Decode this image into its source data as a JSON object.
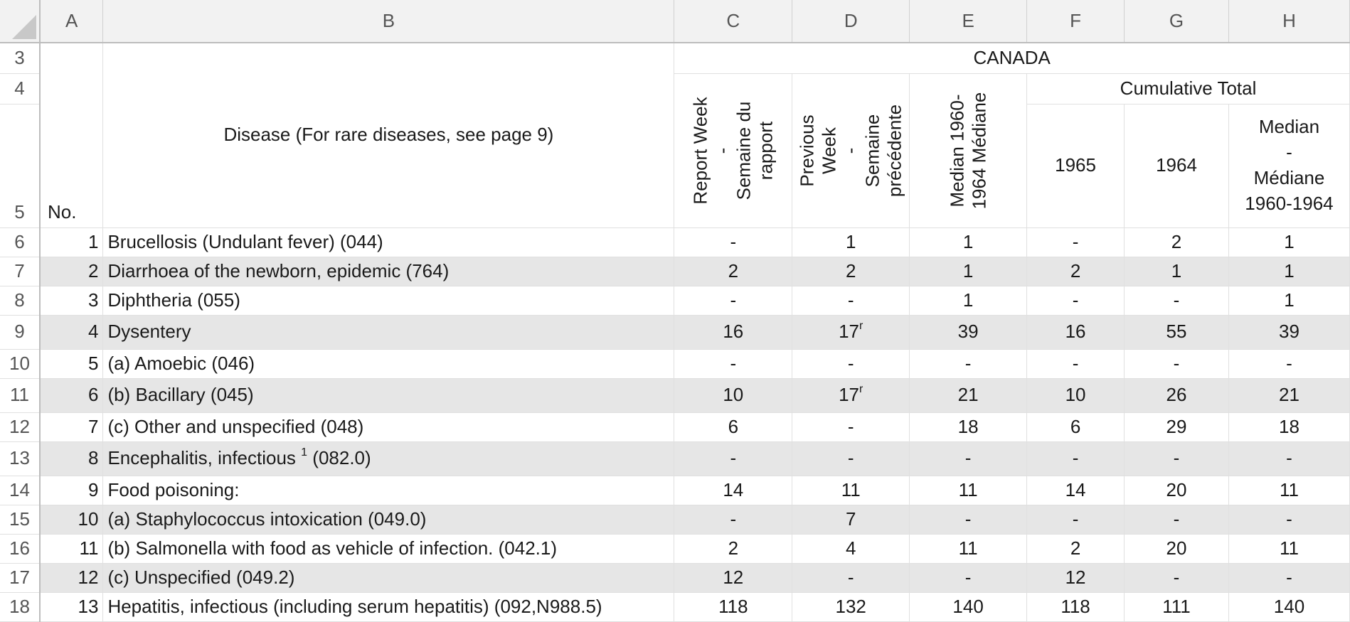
{
  "columns": [
    "A",
    "B",
    "C",
    "D",
    "E",
    "F",
    "G",
    "H"
  ],
  "header": {
    "row3": "CANADA",
    "row4_cumulative": "Cumulative Total",
    "no_label": "No.",
    "disease_label": "Disease (For rare diseases, see page 9)",
    "report_week": "Report Week\n-\nSemaine du rapport",
    "previous_week": "Previous Week\n-\nSemaine précédente",
    "median_week": "Median 1960-1964 Médiane",
    "y1965": "1965",
    "y1964": "1964",
    "median_cum_l1": "Median",
    "median_cum_l2": "-",
    "median_cum_l3": "Médiane",
    "median_cum_l4": "1960-1964"
  },
  "row_numbers": {
    "r3": "3",
    "r4": "4",
    "r5": "5"
  },
  "rows": [
    {
      "row": "6",
      "no": "1",
      "disease": "Brucellosis (Undulant fever) (044)",
      "c": "-",
      "d": "1",
      "d_sup": "",
      "e": "1",
      "f": "-",
      "g": "2",
      "h": "1"
    },
    {
      "row": "7",
      "no": "2",
      "disease": "Diarrhoea of the newborn, epidemic (764)",
      "c": "2",
      "d": "2",
      "d_sup": "",
      "e": "1",
      "f": "2",
      "g": "1",
      "h": "1"
    },
    {
      "row": "8",
      "no": "3",
      "disease": "Diphtheria (055)",
      "c": "-",
      "d": "-",
      "d_sup": "",
      "e": "1",
      "f": "-",
      "g": "-",
      "h": "1"
    },
    {
      "row": "9",
      "no": "4",
      "disease": "Dysentery",
      "c": "16",
      "d": "17",
      "d_sup": "r",
      "e": "39",
      "f": "16",
      "g": "55",
      "h": "39"
    },
    {
      "row": "10",
      "no": "5",
      "disease": "(a) Amoebic  (046)",
      "c": "-",
      "d": "-",
      "d_sup": "",
      "e": "-",
      "f": "-",
      "g": "-",
      "h": "-"
    },
    {
      "row": "11",
      "no": "6",
      "disease": "(b) Bacillary (045)",
      "c": "10",
      "d": "17",
      "d_sup": "r",
      "e": "21",
      "f": "10",
      "g": "26",
      "h": "21"
    },
    {
      "row": "12",
      "no": "7",
      "disease": "(c) Other and unspecified (048)",
      "c": "6",
      "d": "-",
      "d_sup": "",
      "e": "18",
      "f": "6",
      "g": "29",
      "h": "18"
    },
    {
      "row": "13",
      "no": "8",
      "disease": "Encephalitis, infectious",
      "disease_sup": "1",
      "disease_tail": "(082.0)",
      "c": "-",
      "d": "-",
      "d_sup": "",
      "e": "-",
      "f": "-",
      "g": "-",
      "h": "-"
    },
    {
      "row": "14",
      "no": "9",
      "disease": "Food poisoning:",
      "c": "14",
      "d": "11",
      "d_sup": "",
      "e": "11",
      "f": "14",
      "g": "20",
      "h": "11"
    },
    {
      "row": "15",
      "no": "10",
      "disease": "(a) Staphylococcus intoxication (049.0)",
      "c": "-",
      "d": "7",
      "d_sup": "",
      "e": "-",
      "f": "-",
      "g": "-",
      "h": "-"
    },
    {
      "row": "16",
      "no": "11",
      "disease": "(b) Salmonella with food as vehicle of infection. (042.1)",
      "c": "2",
      "d": "4",
      "d_sup": "",
      "e": "11",
      "f": "2",
      "g": "20",
      "h": "11"
    },
    {
      "row": "17",
      "no": "12",
      "disease": "(c) Unspecified (049.2)",
      "c": "12",
      "d": "-",
      "d_sup": "",
      "e": "-",
      "f": "12",
      "g": "-",
      "h": "-"
    },
    {
      "row": "18",
      "no": "13",
      "disease": "Hepatitis, infectious (including serum hepatitis) (092,N988.5)",
      "c": "118",
      "d": "132",
      "d_sup": "",
      "e": "140",
      "f": "118",
      "g": "111",
      "h": "140"
    }
  ]
}
